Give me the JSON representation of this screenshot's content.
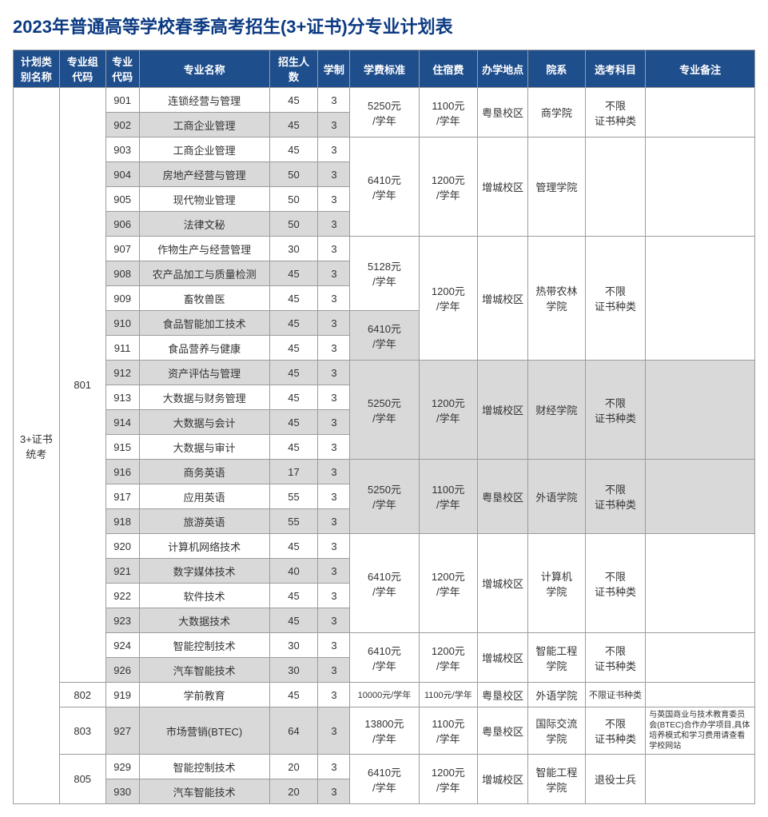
{
  "title": "2023年普通高等学校春季高考招生(3+证书)分专业计划表",
  "headers": [
    "计划类别名称",
    "专业组代码",
    "专业代码",
    "专业名称",
    "招生人数",
    "学制",
    "学费标准",
    "住宿费",
    "办学地点",
    "院系",
    "选考科目",
    "专业备注"
  ],
  "plan_type": "3+证书\n统考",
  "groups": {
    "g801": "801",
    "g802": "802",
    "g803": "803",
    "g805": "805"
  },
  "codes": {
    "r1": "901",
    "r2": "902",
    "r3": "903",
    "r4": "904",
    "r5": "905",
    "r6": "906",
    "r7": "907",
    "r8": "908",
    "r9": "909",
    "r10": "910",
    "r11": "911",
    "r12": "912",
    "r13": "913",
    "r14": "914",
    "r15": "915",
    "r16": "916",
    "r17": "917",
    "r18": "918",
    "r19": "920",
    "r20": "921",
    "r21": "922",
    "r22": "923",
    "r23": "924",
    "r24": "926",
    "r25": "919",
    "r26": "927",
    "r27": "929",
    "r28": "930"
  },
  "names": {
    "r1": "连锁经营与管理",
    "r2": "工商企业管理",
    "r3": "工商企业管理",
    "r4": "房地产经营与管理",
    "r5": "现代物业管理",
    "r6": "法律文秘",
    "r7": "作物生产与经营管理",
    "r8": "农产品加工与质量检测",
    "r9": "畜牧兽医",
    "r10": "食品智能加工技术",
    "r11": "食品营养与健康",
    "r12": "资产评估与管理",
    "r13": "大数据与财务管理",
    "r14": "大数据与会计",
    "r15": "大数据与审计",
    "r16": "商务英语",
    "r17": "应用英语",
    "r18": "旅游英语",
    "r19": "计算机网络技术",
    "r20": "数字媒体技术",
    "r21": "软件技术",
    "r22": "大数据技术",
    "r23": "智能控制技术",
    "r24": "汽车智能技术",
    "r25": "学前教育",
    "r26": "市场营销(BTEC)",
    "r27": "智能控制技术",
    "r28": "汽车智能技术"
  },
  "counts": {
    "r1": "45",
    "r2": "45",
    "r3": "45",
    "r4": "50",
    "r5": "50",
    "r6": "50",
    "r7": "30",
    "r8": "45",
    "r9": "45",
    "r10": "45",
    "r11": "45",
    "r12": "45",
    "r13": "45",
    "r14": "45",
    "r15": "45",
    "r16": "17",
    "r17": "55",
    "r18": "55",
    "r19": "45",
    "r20": "40",
    "r21": "45",
    "r22": "45",
    "r23": "30",
    "r24": "30",
    "r25": "45",
    "r26": "64",
    "r27": "20",
    "r28": "20"
  },
  "years": {
    "r1": "3",
    "r2": "3",
    "r3": "3",
    "r4": "3",
    "r5": "3",
    "r6": "3",
    "r7": "3",
    "r8": "3",
    "r9": "3",
    "r10": "3",
    "r11": "3",
    "r12": "3",
    "r13": "3",
    "r14": "3",
    "r15": "3",
    "r16": "3",
    "r17": "3",
    "r18": "3",
    "r19": "3",
    "r20": "3",
    "r21": "3",
    "r22": "3",
    "r23": "3",
    "r24": "3",
    "r25": "3",
    "r26": "3",
    "r27": "3",
    "r28": "3"
  },
  "fees": {
    "f1": "5250元\n/学年",
    "f2": "6410元\n/学年",
    "f3": "5128元\n/学年",
    "f4": "6410元\n/学年",
    "f5": "5250元\n/学年",
    "f6": "5250元\n/学年",
    "f7": "6410元\n/学年",
    "f8": "6410元\n/学年",
    "f9": "10000元/学年",
    "f10": "13800元\n/学年",
    "f11": "6410元\n/学年"
  },
  "dorm": {
    "d1": "1100元\n/学年",
    "d2": "1200元\n/学年",
    "d3": "1200元\n/学年",
    "d4": "1200元\n/学年",
    "d5": "1100元\n/学年",
    "d6": "1200元\n/学年",
    "d7": "1200元\n/学年",
    "d8": "1100元/学年",
    "d9": "1100元\n/学年",
    "d10": "1200元\n/学年"
  },
  "campus": {
    "c1": "粤垦校区",
    "c2": "增城校区",
    "c3": "增城校区",
    "c4": "增城校区",
    "c5": "粤垦校区",
    "c6": "增城校区",
    "c7": "增城校区",
    "c8": "粤垦校区",
    "c9": "粤垦校区",
    "c10": "增城校区"
  },
  "dept": {
    "p1": "商学院",
    "p2": "管理学院",
    "p3": "热带农林\n学院",
    "p4": "财经学院",
    "p5": "外语学院",
    "p6": "计算机\n学院",
    "p7": "智能工程\n学院",
    "p8": "外语学院",
    "p9": "国际交流\n学院",
    "p10": "智能工程\n学院"
  },
  "subject": {
    "s1": "不限\n证书种类",
    "s2": "不限\n证书种类",
    "s3": "不限\n证书种类",
    "s4": "不限\n证书种类",
    "s5": "不限\n证书种类",
    "s6": "不限\n证书种类",
    "s7": "不限证书种类",
    "s8": "不限\n证书种类",
    "s9": "退役士兵"
  },
  "remark": {
    "rk1": "与英国商业与技术教育委员会(BTEC)合作办学项目,具体培养模式和学习费用请查看学校网站"
  }
}
